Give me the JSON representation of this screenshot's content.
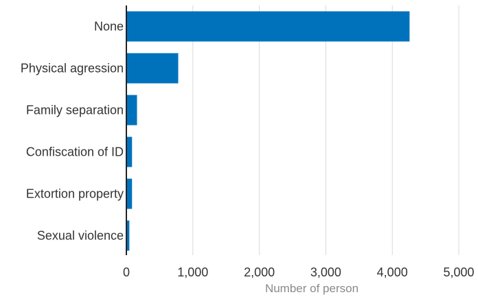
{
  "chart_data": {
    "type": "bar",
    "orientation": "horizontal",
    "categories": [
      "None",
      "Physical agression",
      "Family separation",
      "Confiscation of ID",
      "Extortion property",
      "Sexual violence"
    ],
    "values": [
      4260,
      780,
      160,
      85,
      85,
      45
    ],
    "xlabel": "Number of person",
    "xlim": [
      0,
      5000
    ],
    "xticks": [
      0,
      1000,
      2000,
      3000,
      4000,
      5000
    ],
    "xtick_labels": [
      "0",
      "1,000",
      "2,000",
      "3,000",
      "4,000",
      "5,000"
    ],
    "grid": "vertical",
    "bar_color": "#0072bc"
  }
}
